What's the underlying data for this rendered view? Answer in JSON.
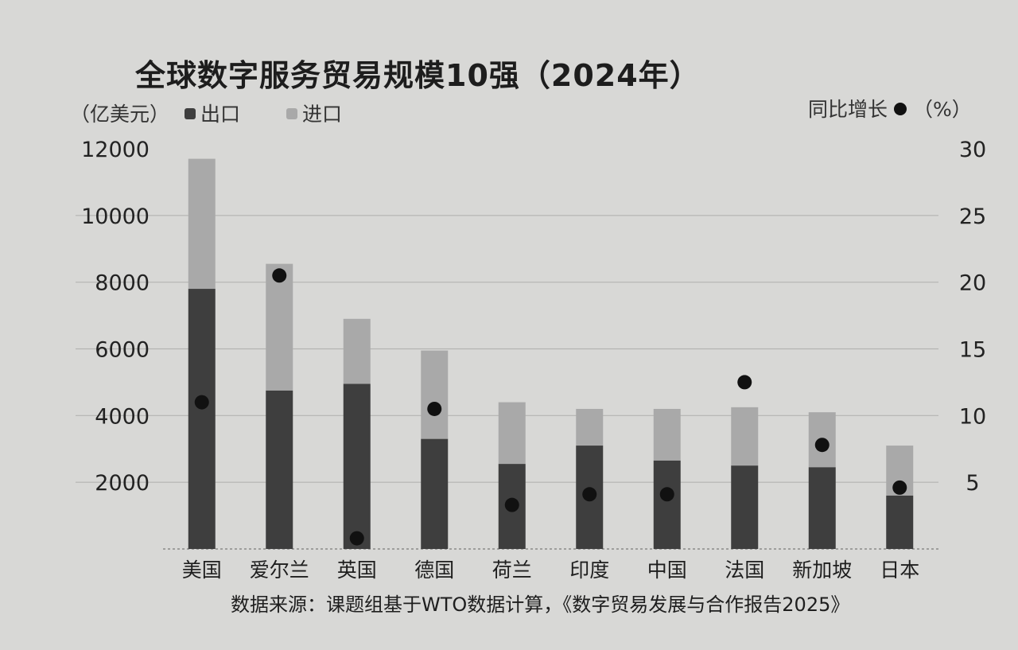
{
  "chart_data": {
    "type": "bar",
    "title": "全球数字服务贸易规模10强（2024年）",
    "left_axis_unit": "（亿美元）",
    "right_axis_label": "同比增长",
    "right_axis_unit": "（%）",
    "source": "数据来源：课题组基于WTO数据计算，《数字贸易发展与合作报告2025》",
    "categories": [
      "美国",
      "爱尔兰",
      "英国",
      "德国",
      "荷兰",
      "印度",
      "中国",
      "法国",
      "新加坡",
      "日本"
    ],
    "stacked": true,
    "series": [
      {
        "name": "出口",
        "color": "#3e3e3e",
        "axis": "left",
        "values": [
          7800,
          4750,
          4950,
          3300,
          2550,
          3100,
          2650,
          2500,
          2450,
          1600
        ]
      },
      {
        "name": "进口",
        "color": "#a9a9a9",
        "axis": "left",
        "values": [
          3900,
          3800,
          1950,
          2650,
          1850,
          1100,
          1550,
          1750,
          1650,
          1500
        ]
      },
      {
        "name": "同比增长",
        "type": "dot",
        "color": "#111111",
        "axis": "right",
        "values": [
          11.0,
          20.5,
          0.8,
          10.5,
          3.3,
          4.1,
          4.1,
          12.5,
          7.8,
          4.6
        ]
      }
    ],
    "ylim_left": [
      0,
      12000
    ],
    "yticks_left": [
      "2000",
      "4000",
      "6000",
      "8000",
      "10000",
      "12000"
    ],
    "ylim_right": [
      0,
      30
    ],
    "yticks_right": [
      "5",
      "10",
      "15",
      "20",
      "25",
      "30"
    ],
    "grid": true
  }
}
